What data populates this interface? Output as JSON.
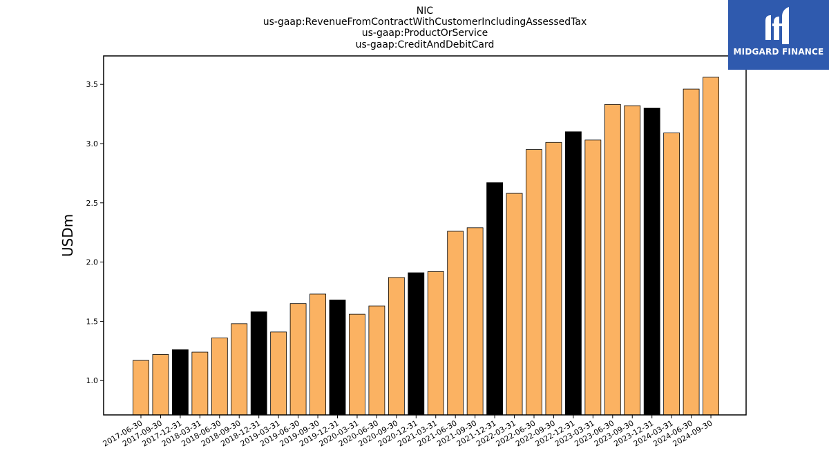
{
  "chart_data": {
    "type": "bar",
    "title_lines": [
      "NIC",
      "us-gaap:RevenueFromContractWithCustomerIncludingAssessedTax",
      "us-gaap:ProductOrService",
      "us-gaap:CreditAndDebitCard"
    ],
    "ylabel": "USDm",
    "xlabel": "",
    "ylim": [
      0.71,
      3.74
    ],
    "yticks": [
      "1.0",
      "1.5",
      "2.0",
      "2.5",
      "3.0",
      "3.5"
    ],
    "categories": [
      "2017-06-30",
      "2017-09-30",
      "2017-12-31",
      "2018-03-31",
      "2018-06-30",
      "2018-09-30",
      "2018-12-31",
      "2019-03-31",
      "2019-06-30",
      "2019-09-30",
      "2019-12-31",
      "2020-03-31",
      "2020-06-30",
      "2020-09-30",
      "2020-12-31",
      "2021-03-31",
      "2021-06-30",
      "2021-09-30",
      "2021-12-31",
      "2022-03-31",
      "2022-06-30",
      "2022-09-30",
      "2022-12-31",
      "2023-03-31",
      "2023-06-30",
      "2023-09-30",
      "2023-12-31",
      "2024-03-31",
      "2024-06-30",
      "2024-09-30"
    ],
    "values": [
      1.17,
      1.22,
      1.26,
      1.24,
      1.36,
      1.48,
      1.58,
      1.41,
      1.65,
      1.73,
      1.68,
      1.56,
      1.63,
      1.87,
      1.91,
      1.92,
      2.26,
      2.29,
      2.67,
      2.58,
      2.95,
      3.01,
      3.1,
      3.03,
      3.33,
      3.32,
      3.3,
      3.09,
      3.46,
      3.56
    ],
    "colors": {
      "quarter": "#fbb262",
      "year_end": "#000000",
      "edge": "#000000"
    },
    "grid": false,
    "legend": "none"
  },
  "logo": {
    "text": "MIDGARD FINANCE",
    "background": "#2f5aae"
  }
}
